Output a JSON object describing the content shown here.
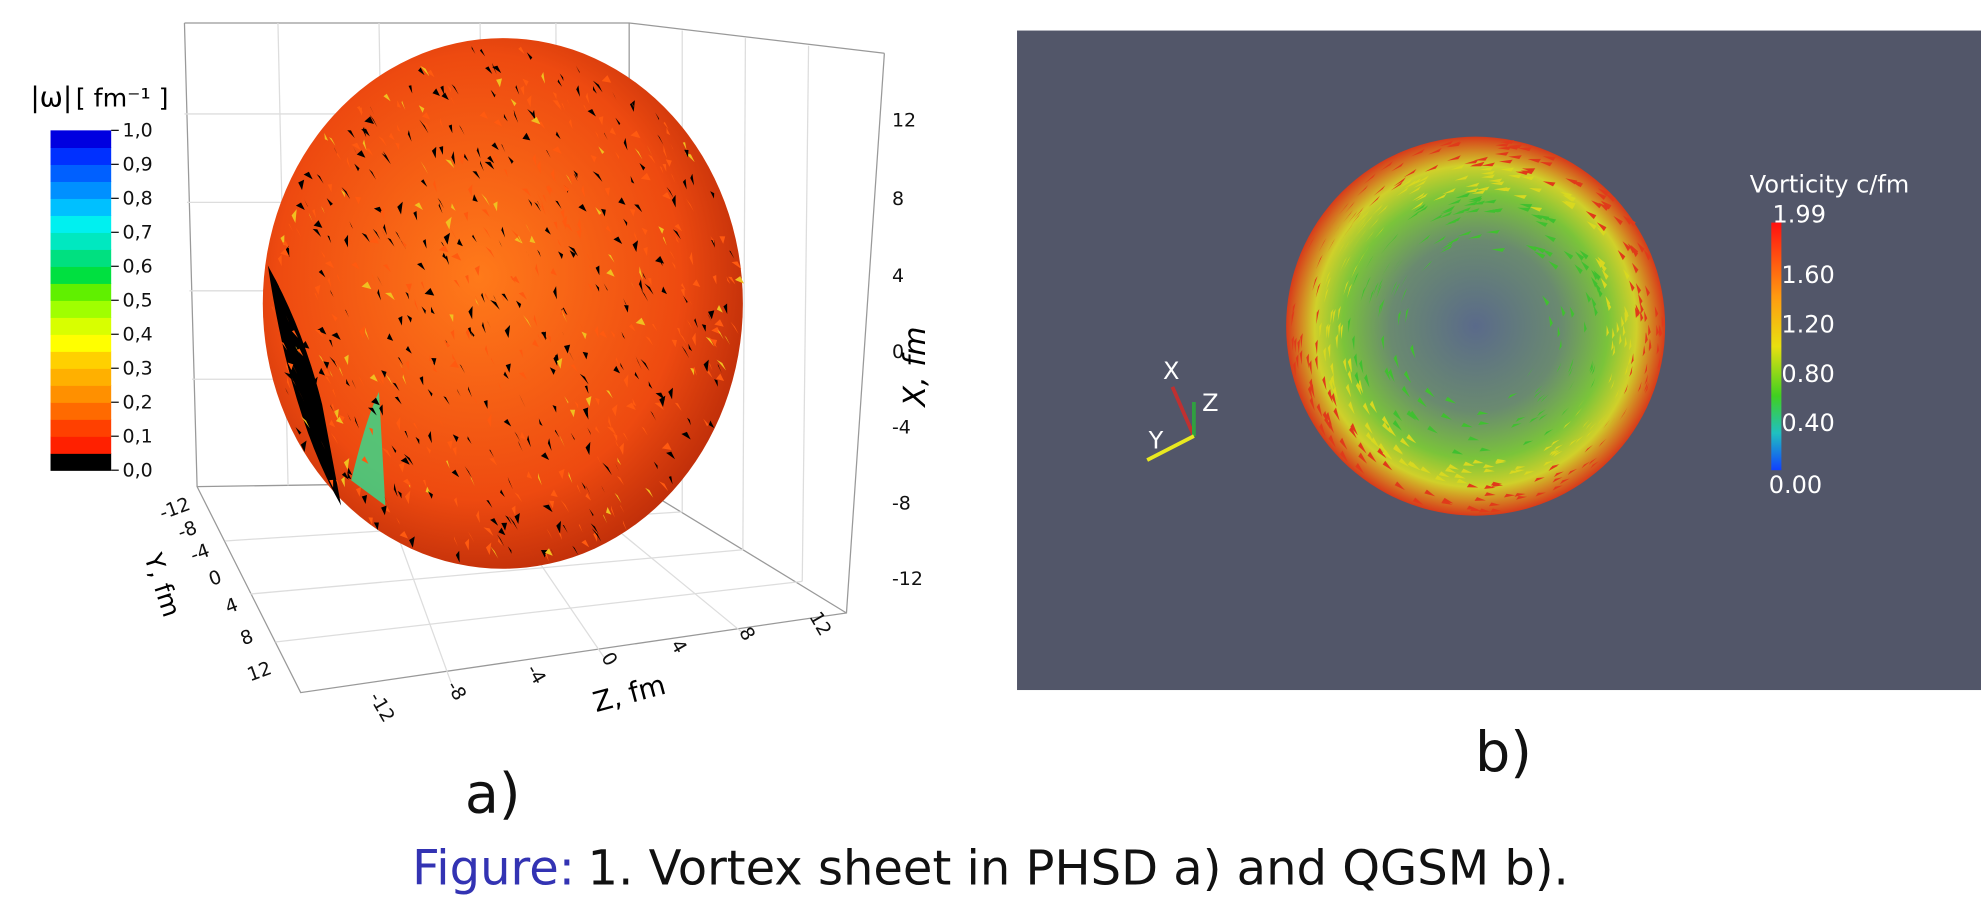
{
  "panel_a": {
    "label": "a)",
    "colorbar": {
      "symbol": "|ω|",
      "unit": "[ fm⁻¹ ]",
      "ticks": [
        "1,0",
        "0,9",
        "0,8",
        "0,7",
        "0,6",
        "0,5",
        "0,4",
        "0,3",
        "0,2",
        "0,1",
        "0,0"
      ]
    },
    "x_axis": {
      "label": "X, fm",
      "ticks": [
        "12",
        "8",
        "4",
        "0",
        "-4",
        "-8",
        "-12"
      ]
    },
    "y_axis": {
      "label": "Y, fm",
      "ticks": [
        "-12",
        "-8",
        "-4",
        "0",
        "4",
        "8",
        "12"
      ]
    },
    "z_axis": {
      "label": "Z, fm",
      "ticks": [
        "-12",
        "-8",
        "-4",
        "0",
        "4",
        "8",
        "12"
      ]
    }
  },
  "panel_b": {
    "label": "b)",
    "colorbar": {
      "title": "Vorticity c/fm",
      "ticks": [
        "1.99",
        "1.60",
        "1.20",
        "0.80",
        "0.40",
        "0.00"
      ]
    },
    "triad": {
      "x": "X",
      "y": "Y",
      "z": "Z"
    }
  },
  "caption": {
    "prefix": "Figure:",
    "text": "1. Vortex sheet in PHSD a) and QGSM b)."
  }
}
